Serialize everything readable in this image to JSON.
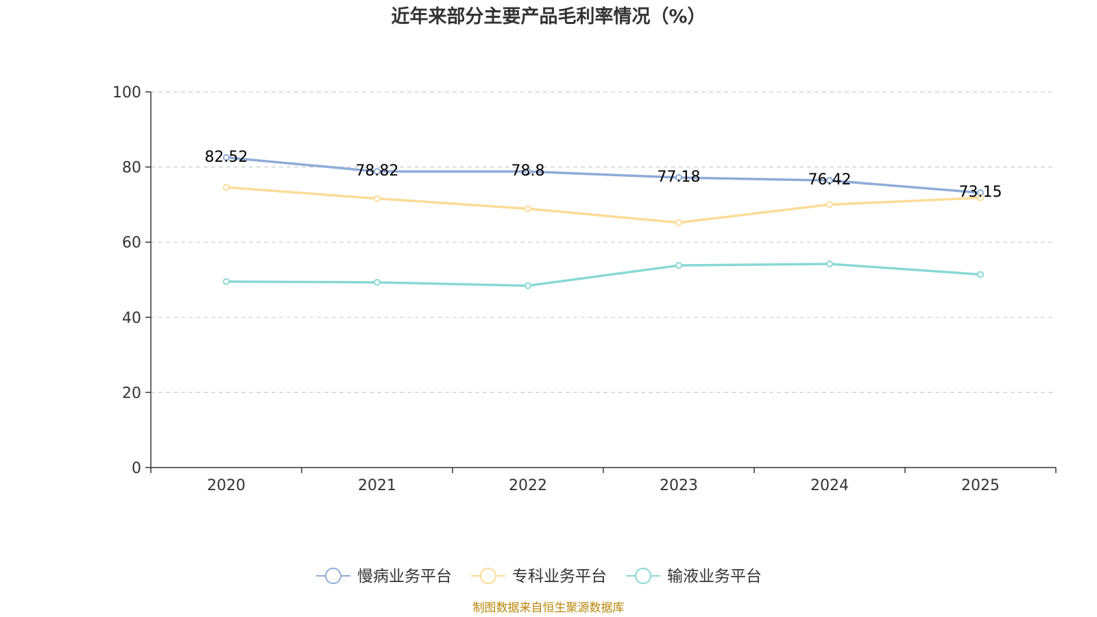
{
  "chart_data": {
    "type": "line",
    "title": "近年来部分主要产品毛利率情况（%）",
    "categories": [
      "2020",
      "2021",
      "2022",
      "2023",
      "2024",
      "2025"
    ],
    "ylim": [
      0,
      100
    ],
    "yticks": [
      0,
      20,
      40,
      60,
      80,
      100
    ],
    "grid": true,
    "legend_position": "bottom",
    "series": [
      {
        "name": "慢病业务平台",
        "color": "#8eabd8",
        "values": [
          82.52,
          78.82,
          78.8,
          77.18,
          76.42,
          73.15
        ],
        "labels": [
          "82.52",
          "78.82",
          "78.8",
          "77.18",
          "76.42",
          "73.15"
        ]
      },
      {
        "name": "专科业务平台",
        "color": "#fddb97",
        "values": [
          74.6,
          71.6,
          68.9,
          65.2,
          70.0,
          71.8
        ]
      },
      {
        "name": "输液业务平台",
        "color": "#88d8d4",
        "values": [
          49.5,
          49.3,
          48.4,
          53.8,
          54.2,
          51.4
        ]
      }
    ],
    "source": "制图数据来自恒生聚源数据库"
  }
}
